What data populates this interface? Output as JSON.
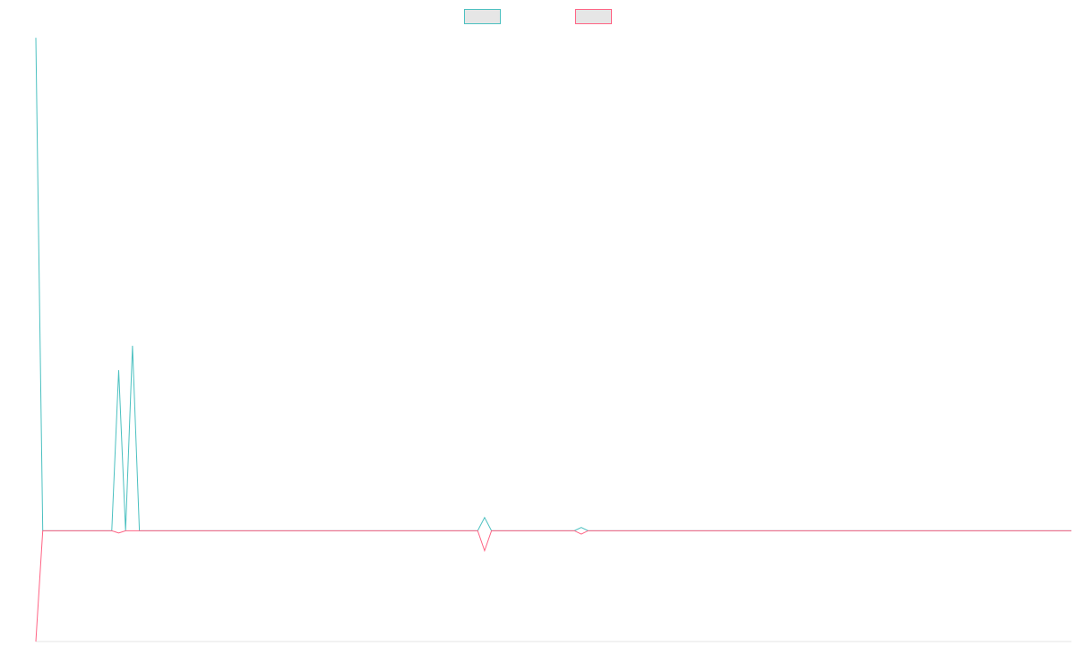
{
  "chart_data": {
    "type": "line",
    "title": "",
    "xlabel": "",
    "ylabel": "",
    "legend": {
      "placement": "top-center",
      "entries": [
        "",
        ""
      ]
    },
    "grid": false,
    "xlim": [
      0,
      150
    ],
    "ylim": [
      -1,
      4.5
    ],
    "series": [
      {
        "color": "#4bc0c0",
        "x": [
          0,
          1,
          2,
          3,
          4,
          5,
          6,
          7,
          8,
          9,
          10,
          11,
          12,
          13,
          14,
          15,
          16,
          17,
          18,
          19,
          20,
          21,
          22,
          23,
          24,
          25,
          26,
          27,
          28,
          29,
          30,
          31,
          32,
          33,
          34,
          35,
          36,
          37,
          38,
          39,
          40,
          41,
          42,
          43,
          44,
          45,
          46,
          47,
          48,
          49,
          50,
          51,
          52,
          53,
          54,
          55,
          56,
          57,
          58,
          59,
          60,
          61,
          62,
          63,
          64,
          65,
          66,
          67,
          68,
          69,
          70,
          71,
          72,
          73,
          74,
          75,
          76,
          77,
          78,
          79,
          80,
          81,
          82,
          83,
          84,
          85,
          86,
          87,
          88,
          89,
          90,
          91,
          92,
          93,
          94,
          95,
          96,
          97,
          98,
          99,
          100,
          101,
          102,
          103,
          104,
          105,
          106,
          107,
          108,
          109,
          110,
          111,
          112,
          113,
          114,
          115,
          116,
          117,
          118,
          119,
          120,
          121,
          122,
          123,
          124,
          125,
          126,
          127,
          128,
          129,
          130,
          131,
          132,
          133,
          134,
          135,
          136,
          137,
          138,
          139,
          140,
          141,
          142,
          143,
          144,
          145,
          146,
          147,
          148,
          149,
          150
        ],
        "values": [
          4.45,
          0,
          0,
          0,
          0,
          0,
          0,
          0,
          0,
          0,
          0,
          0,
          1.45,
          0,
          1.67,
          0,
          0,
          0,
          0,
          0,
          0,
          0,
          0,
          0,
          0,
          0,
          0,
          0,
          0,
          0,
          0,
          0,
          0,
          0,
          0,
          0,
          0,
          0,
          0,
          0,
          0,
          0,
          0,
          0,
          0,
          0,
          0,
          0,
          0,
          0,
          0,
          0,
          0,
          0,
          0,
          0,
          0,
          0,
          0,
          0,
          0,
          0,
          0,
          0,
          0,
          0.12,
          0,
          0,
          0,
          0,
          0,
          0,
          0,
          0,
          0,
          0,
          0,
          0,
          0,
          0.03,
          0,
          0,
          0,
          0,
          0,
          0,
          0,
          0,
          0,
          0,
          0,
          0,
          0,
          0,
          0,
          0,
          0,
          0,
          0,
          0,
          0,
          0,
          0,
          0,
          0,
          0,
          0,
          0,
          0,
          0,
          0,
          0,
          0,
          0,
          0,
          0,
          0,
          0,
          0,
          0,
          0,
          0,
          0,
          0,
          0,
          0,
          0,
          0,
          0,
          0,
          0,
          0,
          0,
          0,
          0,
          0,
          0,
          0,
          0,
          0,
          0,
          0,
          0,
          0,
          0,
          0,
          0,
          0,
          0,
          0,
          0
        ]
      },
      {
        "color": "#ff6384",
        "x": [
          0,
          1,
          2,
          3,
          4,
          5,
          6,
          7,
          8,
          9,
          10,
          11,
          12,
          13,
          14,
          15,
          16,
          17,
          18,
          19,
          20,
          21,
          22,
          23,
          24,
          25,
          26,
          27,
          28,
          29,
          30,
          31,
          32,
          33,
          34,
          35,
          36,
          37,
          38,
          39,
          40,
          41,
          42,
          43,
          44,
          45,
          46,
          47,
          48,
          49,
          50,
          51,
          52,
          53,
          54,
          55,
          56,
          57,
          58,
          59,
          60,
          61,
          62,
          63,
          64,
          65,
          66,
          67,
          68,
          69,
          70,
          71,
          72,
          73,
          74,
          75,
          76,
          77,
          78,
          79,
          80,
          81,
          82,
          83,
          84,
          85,
          86,
          87,
          88,
          89,
          90,
          91,
          92,
          93,
          94,
          95,
          96,
          97,
          98,
          99,
          100,
          101,
          102,
          103,
          104,
          105,
          106,
          107,
          108,
          109,
          110,
          111,
          112,
          113,
          114,
          115,
          116,
          117,
          118,
          119,
          120,
          121,
          122,
          123,
          124,
          125,
          126,
          127,
          128,
          129,
          130,
          131,
          132,
          133,
          134,
          135,
          136,
          137,
          138,
          139,
          140,
          141,
          142,
          143,
          144,
          145,
          146,
          147,
          148,
          149,
          150
        ],
        "values": [
          -1,
          0,
          0,
          0,
          0,
          0,
          0,
          0,
          0,
          0,
          0,
          0,
          -0.02,
          0,
          0,
          0,
          0,
          0,
          0,
          0,
          0,
          0,
          0,
          0,
          0,
          0,
          0,
          0,
          0,
          0,
          0,
          0,
          0,
          0,
          0,
          0,
          0,
          0,
          0,
          0,
          0,
          0,
          0,
          0,
          0,
          0,
          0,
          0,
          0,
          0,
          0,
          0,
          0,
          0,
          0,
          0,
          0,
          0,
          0,
          0,
          0,
          0,
          0,
          0,
          0,
          -0.18,
          0,
          0,
          0,
          0,
          0,
          0,
          0,
          0,
          0,
          0,
          0,
          0,
          0,
          -0.03,
          0,
          0,
          0,
          0,
          0,
          0,
          0,
          0,
          0,
          0,
          0,
          0,
          0,
          0,
          0,
          0,
          0,
          0,
          0,
          0,
          0,
          0,
          0,
          0,
          0,
          0,
          0,
          0,
          0,
          0,
          0,
          0,
          0,
          0,
          0,
          0,
          0,
          0,
          0,
          0,
          0,
          0,
          0,
          0,
          0,
          0,
          0,
          0,
          0,
          0,
          0,
          0,
          0,
          0,
          0,
          0,
          0,
          0,
          0,
          0,
          0,
          0,
          0,
          0,
          0,
          0,
          0,
          0,
          0,
          0,
          0
        ]
      }
    ]
  }
}
